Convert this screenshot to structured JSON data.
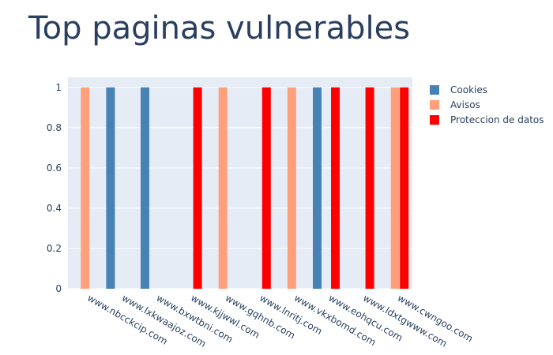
{
  "chart_data": {
    "type": "bar",
    "title": "Top paginas vulnerables",
    "xlabel": "",
    "ylabel": "",
    "ylim": [
      0,
      1.05
    ],
    "yticks": [
      0,
      0.2,
      0.4,
      0.6,
      0.8,
      1
    ],
    "ytick_labels": [
      "0",
      "0.2",
      "0.4",
      "0.6",
      "0.8",
      "1"
    ],
    "grid": true,
    "legend_position": "top-right",
    "categories": [
      "www.nbcckcip.com",
      "www.lxkwaajoz.com",
      "www.bxwtbni.com",
      "www.kjjwwl.com",
      "www.gqhnb.com",
      "www.lnritj.com",
      "www.vkxbomd.com",
      "www.eohqcu.com",
      "www.ldxtgwww.com",
      "www.cwngoo.com"
    ],
    "series": [
      {
        "name": "Cookies",
        "color": "#4682b4",
        "values": [
          0,
          1,
          1,
          0,
          0,
          0,
          0,
          1,
          0,
          0
        ]
      },
      {
        "name": "Avisos",
        "color": "#ffa07a",
        "values": [
          1,
          0,
          0,
          0,
          1,
          0,
          1,
          0,
          0,
          1
        ]
      },
      {
        "name": "Proteccion de datos",
        "color": "#ff0000",
        "values": [
          0,
          0,
          0,
          1,
          0,
          1,
          0,
          1,
          1,
          1
        ]
      }
    ],
    "colors": {
      "plot_background": "#e5ecf6",
      "grid": "#ffffff",
      "text": "#2a3f5f"
    }
  }
}
